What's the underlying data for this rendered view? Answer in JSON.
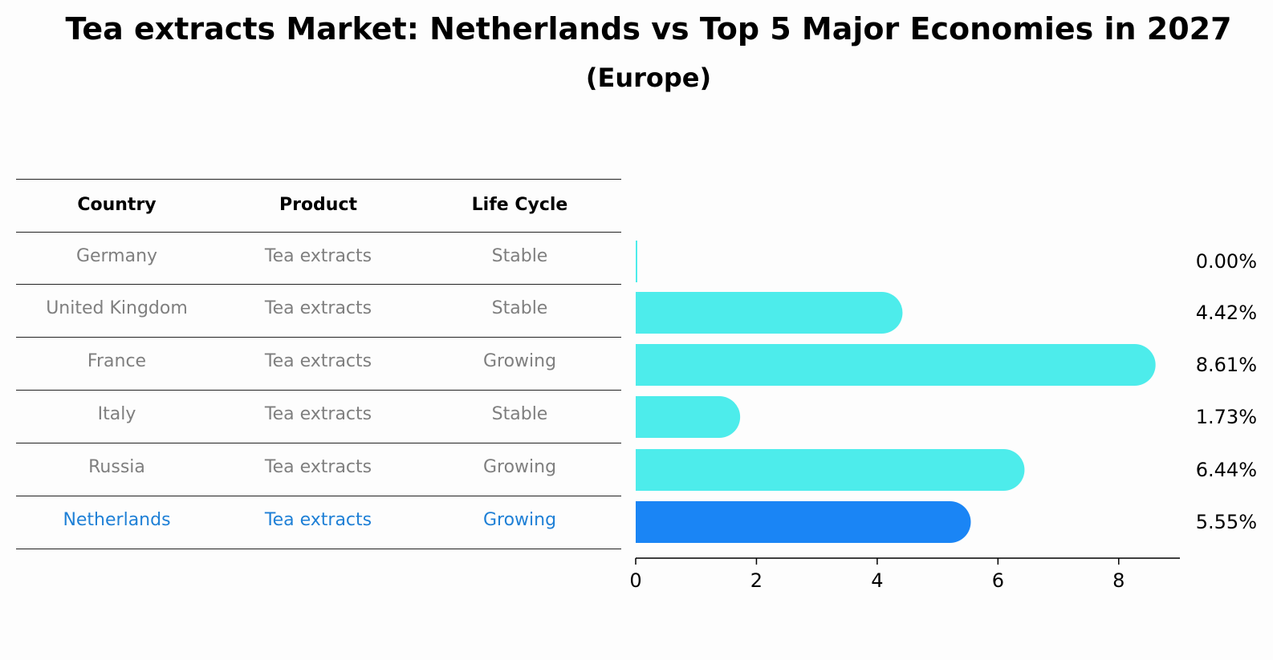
{
  "title": "Tea extracts Market: Netherlands vs Top 5 Major Economies in 2027",
  "subtitle": "(Europe)",
  "table": {
    "headers": [
      "Country",
      "Product",
      "Life Cycle"
    ],
    "rows": [
      [
        "Germany",
        "Tea extracts",
        "Stable"
      ],
      [
        "United Kingdom",
        "Tea extracts",
        "Stable"
      ],
      [
        "France",
        "Tea extracts",
        "Growing"
      ],
      [
        "Italy",
        "Tea extracts",
        "Stable"
      ],
      [
        "Russia",
        "Tea extracts",
        "Growing"
      ],
      [
        "Netherlands",
        "Tea extracts",
        "Growing"
      ]
    ],
    "highlight_row": 5
  },
  "colors": {
    "bar": "#4deceb",
    "highlight_bar": "#1a85f5",
    "muted_text": "#7f7f7f",
    "highlight_text": "#1f80d6"
  },
  "chart_data": {
    "type": "bar",
    "orientation": "horizontal",
    "categories": [
      "Germany",
      "United Kingdom",
      "France",
      "Italy",
      "Russia",
      "Netherlands"
    ],
    "values": [
      0.0,
      4.42,
      8.61,
      1.73,
      6.44,
      5.55
    ],
    "value_labels": [
      "0.00%",
      "4.42%",
      "8.61%",
      "1.73%",
      "6.44%",
      "5.55%"
    ],
    "xlim": [
      0,
      9
    ],
    "xticks": [
      0,
      2,
      4,
      6,
      8
    ],
    "highlight_category": "Netherlands",
    "grid": false
  }
}
